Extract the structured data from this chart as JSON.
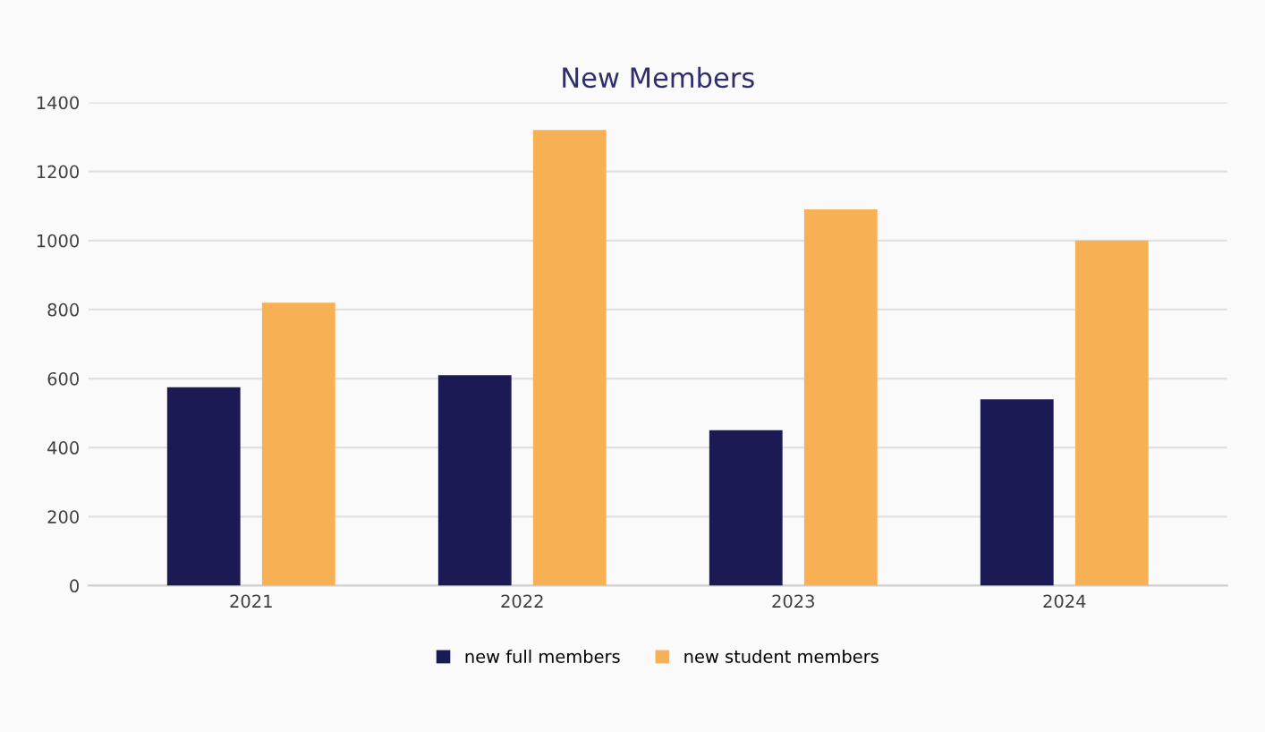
{
  "chart_data": {
    "type": "bar",
    "title": "New Members",
    "categories": [
      "2021",
      "2022",
      "2023",
      "2024"
    ],
    "series": [
      {
        "name": "new full members",
        "color": "#1b1a55",
        "values": [
          575,
          610,
          450,
          540
        ]
      },
      {
        "name": "new student members",
        "color": "#f8b055",
        "values": [
          820,
          1320,
          1090,
          1000
        ]
      }
    ],
    "ylim": [
      0,
      1400
    ],
    "yticks": [
      0,
      200,
      400,
      600,
      800,
      1000,
      1200,
      1400
    ],
    "grid": "y",
    "legend": "bottom"
  }
}
